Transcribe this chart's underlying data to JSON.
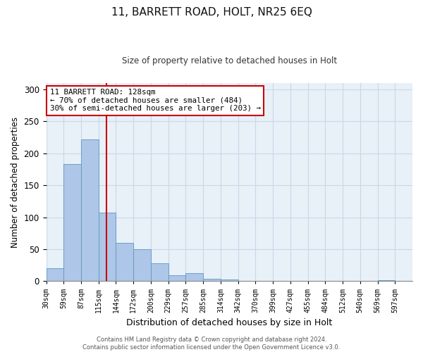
{
  "title": "11, BARRETT ROAD, HOLT, NR25 6EQ",
  "subtitle": "Size of property relative to detached houses in Holt",
  "xlabel": "Distribution of detached houses by size in Holt",
  "ylabel": "Number of detached properties",
  "bar_color": "#aec6e8",
  "bar_edge_color": "#5a9abf",
  "bar_heights": [
    20,
    183,
    222,
    107,
    60,
    50,
    28,
    9,
    12,
    4,
    3,
    0,
    0,
    0,
    0,
    0,
    0,
    0,
    0,
    2,
    0
  ],
  "bin_labels": [
    "30sqm",
    "59sqm",
    "87sqm",
    "115sqm",
    "144sqm",
    "172sqm",
    "200sqm",
    "229sqm",
    "257sqm",
    "285sqm",
    "314sqm",
    "342sqm",
    "370sqm",
    "399sqm",
    "427sqm",
    "455sqm",
    "484sqm",
    "512sqm",
    "540sqm",
    "569sqm",
    "597sqm"
  ],
  "ylim": [
    0,
    310
  ],
  "yticks": [
    0,
    50,
    100,
    150,
    200,
    250,
    300
  ],
  "annotation_line1": "11 BARRETT ROAD: 128sqm",
  "annotation_line2": "← 70% of detached houses are smaller (484)",
  "annotation_line3": "30% of semi-detached houses are larger (203) →",
  "annotation_box_color": "#ffffff",
  "annotation_box_edge_color": "#cc0000",
  "footer_text": "Contains HM Land Registry data © Crown copyright and database right 2024.\nContains public sector information licensed under the Open Government Licence v3.0.",
  "grid_color": "#c8d8e8",
  "background_color": "#e8f0f8"
}
